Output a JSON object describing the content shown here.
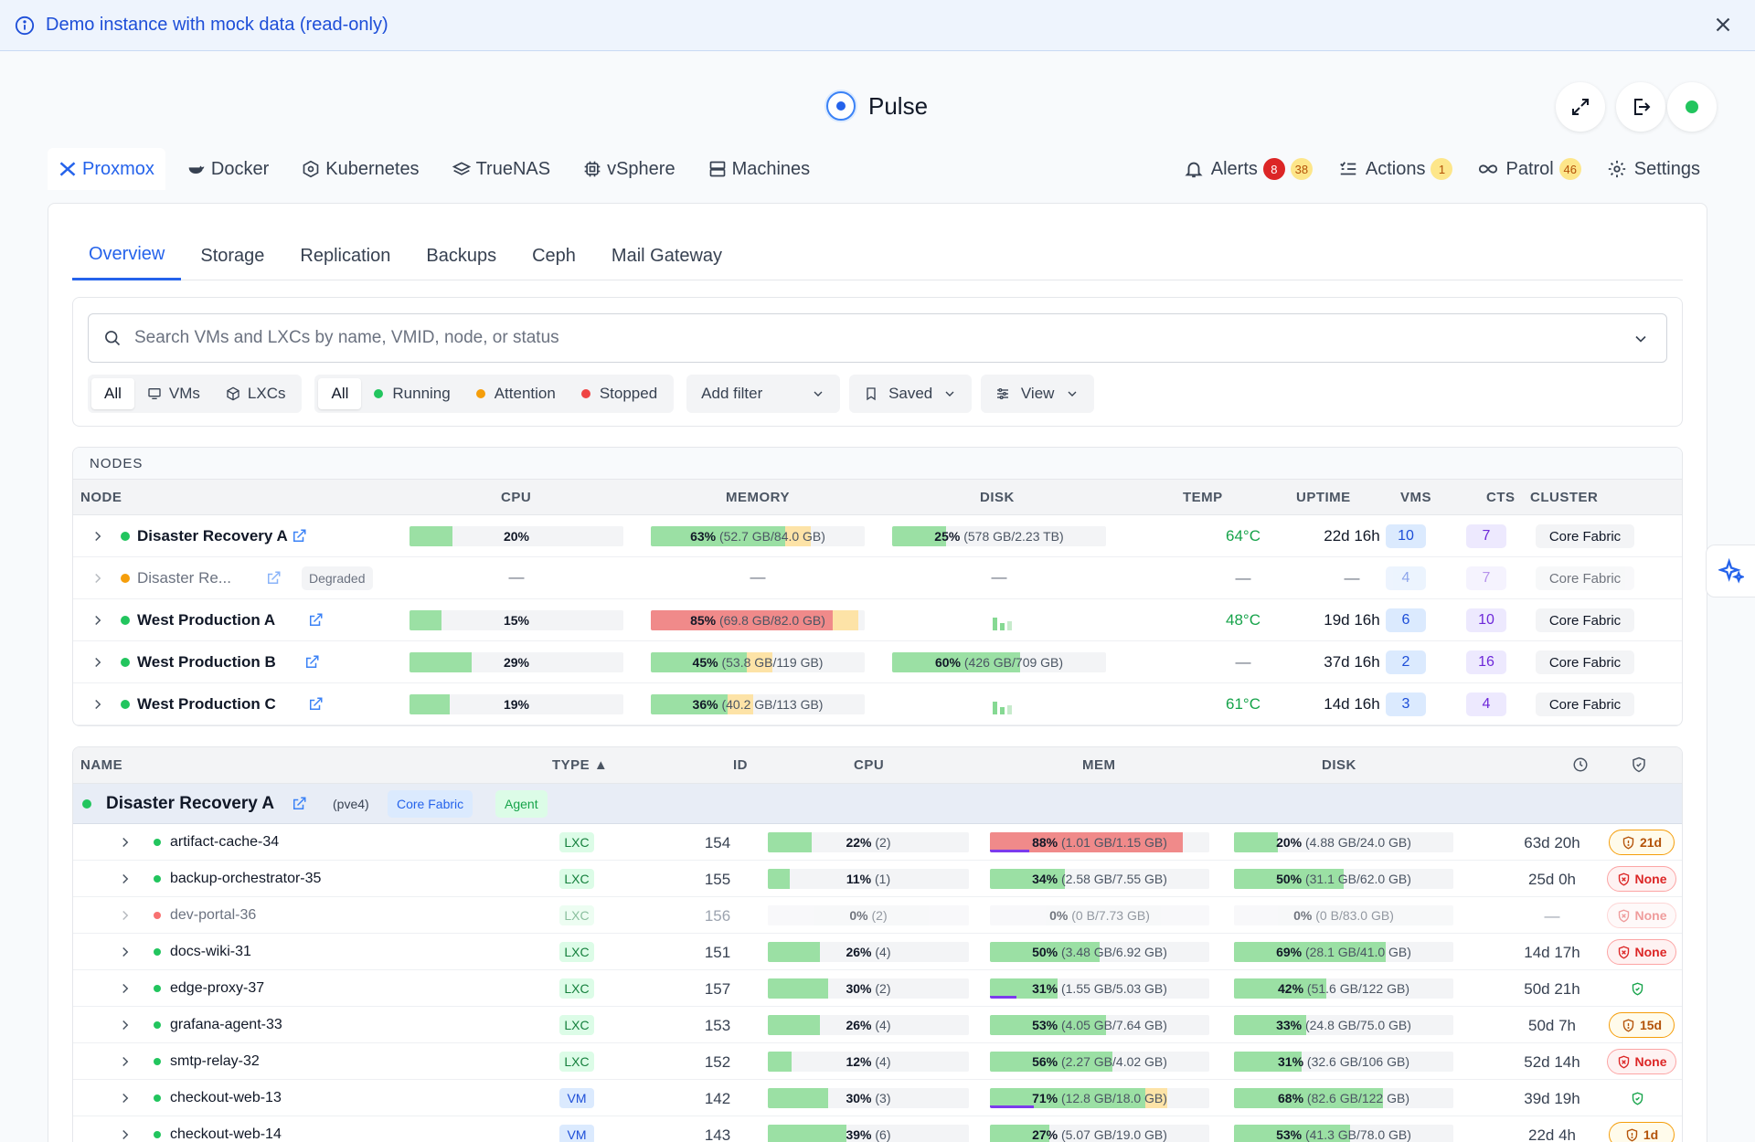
{
  "banner": {
    "text": "Demo instance with mock data (read-only)"
  },
  "app": {
    "title": "Pulse"
  },
  "platform_tabs": [
    "Proxmox",
    "Docker",
    "Kubernetes",
    "TrueNAS",
    "vSphere",
    "Machines"
  ],
  "right_tabs": {
    "alerts": "Alerts",
    "alerts_critical": "8",
    "alerts_warning": "38",
    "actions": "Actions",
    "actions_count": "1",
    "patrol": "Patrol",
    "patrol_count": "46",
    "settings": "Settings"
  },
  "sub_tabs": [
    "Overview",
    "Storage",
    "Replication",
    "Backups",
    "Ceph",
    "Mail Gateway"
  ],
  "search": {
    "placeholder": "Search VMs and LXCs by name, VMID, node, or status"
  },
  "filters": {
    "type": [
      "All",
      "VMs",
      "LXCs"
    ],
    "status": [
      "All",
      "Running",
      "Attention",
      "Stopped"
    ],
    "add_filter": "Add filter",
    "saved": "Saved",
    "view": "View"
  },
  "nodes": {
    "caption": "NODES",
    "headers": [
      "NODE",
      "CPU",
      "MEMORY",
      "DISK",
      "TEMP",
      "UPTIME",
      "VMS",
      "CTS",
      "CLUSTER"
    ],
    "rows": [
      {
        "name": "Disaster Recovery A",
        "status": "online",
        "cpu": "20%",
        "cpu_pct": 20,
        "mem": "63%",
        "mem_detail": "(52.7 GB/84.0 GB)",
        "mem_pct": 63,
        "mem_color": "#9be0a4",
        "disk": "25%",
        "disk_detail": "(578 GB/2.23 TB)",
        "disk_pct": 25,
        "temp": "64°C",
        "uptime": "22d 16h",
        "vms": "10",
        "cts": "7",
        "cluster": "Core Fabric"
      },
      {
        "name": "Disaster Re...",
        "status": "degraded",
        "badge": "Degraded",
        "cpu": "—",
        "mem": "—",
        "disk": "—",
        "temp": "—",
        "uptime": "—",
        "vms": "4",
        "cts": "7",
        "cluster": "Core Fabric"
      },
      {
        "name": "West Production A",
        "status": "online",
        "cpu": "15%",
        "cpu_pct": 15,
        "mem": "85%",
        "mem_detail": "(69.8 GB/82.0 GB)",
        "mem_pct": 85,
        "mem_color": "#f08a8a",
        "disk": "",
        "temp": "48°C",
        "uptime": "19d 16h",
        "vms": "6",
        "cts": "10",
        "cluster": "Core Fabric"
      },
      {
        "name": "West Production B",
        "status": "online",
        "cpu": "29%",
        "cpu_pct": 29,
        "mem": "45%",
        "mem_detail": "(53.8 GB/119 GB)",
        "mem_pct": 45,
        "mem_color": "#9be0a4",
        "disk": "60%",
        "disk_detail": "(426 GB/709 GB)",
        "disk_pct": 60,
        "temp": "—",
        "uptime": "37d 16h",
        "vms": "2",
        "cts": "16",
        "cluster": "Core Fabric"
      },
      {
        "name": "West Production C",
        "status": "online",
        "cpu": "19%",
        "cpu_pct": 19,
        "mem": "36%",
        "mem_detail": "(40.2 GB/113 GB)",
        "mem_pct": 36,
        "mem_color": "#9be0a4",
        "disk": "",
        "temp": "61°C",
        "uptime": "14d 16h",
        "vms": "3",
        "cts": "4",
        "cluster": "Core Fabric"
      }
    ]
  },
  "guests": {
    "headers": [
      "NAME",
      "TYPE ▲",
      "ID",
      "CPU",
      "MEM",
      "DISK"
    ],
    "group": {
      "name": "Disaster Recovery A",
      "node_id": "(pve4)",
      "cluster": "Core Fabric",
      "agent": "Agent"
    },
    "rows": [
      {
        "name": "artifact-cache-34",
        "status": "running",
        "type": "LXC",
        "id": "154",
        "cpu": "22%",
        "cpu_cores": "(2)",
        "cpu_pct": 22,
        "mem": "88%",
        "mem_detail": "(1.01 GB/1.15 GB)",
        "mem_pct": 88,
        "disk": "20%",
        "disk_detail": "(4.88 GB/24.0 GB)",
        "disk_pct": 20,
        "uptime": "63d 20h",
        "backup": "21d",
        "backup_kind": "warn"
      },
      {
        "name": "backup-orchestrator-35",
        "status": "running",
        "type": "LXC",
        "id": "155",
        "cpu": "11%",
        "cpu_cores": "(1)",
        "cpu_pct": 11,
        "mem": "34%",
        "mem_detail": "(2.58 GB/7.55 GB)",
        "mem_pct": 34,
        "disk": "50%",
        "disk_detail": "(31.1 GB/62.0 GB)",
        "disk_pct": 50,
        "uptime": "25d 0h",
        "backup": "None",
        "backup_kind": "none"
      },
      {
        "name": "dev-portal-36",
        "status": "stopped",
        "type": "LXC",
        "id": "156",
        "cpu": "0%",
        "cpu_cores": "(2)",
        "cpu_pct": 0,
        "mem": "0%",
        "mem_detail": "(0 B/7.73 GB)",
        "mem_pct": 0,
        "disk": "0%",
        "disk_detail": "(0 B/83.0 GB)",
        "disk_pct": 0,
        "uptime": "—",
        "backup": "None",
        "backup_kind": "none"
      },
      {
        "name": "docs-wiki-31",
        "status": "running",
        "type": "LXC",
        "id": "151",
        "cpu": "26%",
        "cpu_cores": "(4)",
        "cpu_pct": 26,
        "mem": "50%",
        "mem_detail": "(3.48 GB/6.92 GB)",
        "mem_pct": 50,
        "disk": "69%",
        "disk_detail": "(28.1 GB/41.0 GB)",
        "disk_pct": 69,
        "uptime": "14d 17h",
        "backup": "None",
        "backup_kind": "none"
      },
      {
        "name": "edge-proxy-37",
        "status": "running",
        "type": "LXC",
        "id": "157",
        "cpu": "30%",
        "cpu_cores": "(2)",
        "cpu_pct": 30,
        "mem": "31%",
        "mem_detail": "(1.55 GB/5.03 GB)",
        "mem_pct": 31,
        "disk": "42%",
        "disk_detail": "(51.6 GB/122 GB)",
        "disk_pct": 42,
        "uptime": "50d 21h",
        "backup": "",
        "backup_kind": "ok"
      },
      {
        "name": "grafana-agent-33",
        "status": "running",
        "type": "LXC",
        "id": "153",
        "cpu": "26%",
        "cpu_cores": "(4)",
        "cpu_pct": 26,
        "mem": "53%",
        "mem_detail": "(4.05 GB/7.64 GB)",
        "mem_pct": 53,
        "disk": "33%",
        "disk_detail": "(24.8 GB/75.0 GB)",
        "disk_pct": 33,
        "uptime": "50d 7h",
        "backup": "15d",
        "backup_kind": "warn"
      },
      {
        "name": "smtp-relay-32",
        "status": "running",
        "type": "LXC",
        "id": "152",
        "cpu": "12%",
        "cpu_cores": "(4)",
        "cpu_pct": 12,
        "mem": "56%",
        "mem_detail": "(2.27 GB/4.02 GB)",
        "mem_pct": 56,
        "disk": "31%",
        "disk_detail": "(32.6 GB/106 GB)",
        "disk_pct": 31,
        "uptime": "52d 14h",
        "backup": "None",
        "backup_kind": "none"
      },
      {
        "name": "checkout-web-13",
        "status": "running",
        "type": "VM",
        "id": "142",
        "cpu": "30%",
        "cpu_cores": "(3)",
        "cpu_pct": 30,
        "mem": "71%",
        "mem_detail": "(12.8 GB/18.0 GB)",
        "mem_pct": 71,
        "disk": "68%",
        "disk_detail": "(82.6 GB/122 GB)",
        "disk_pct": 68,
        "uptime": "39d 19h",
        "backup": "",
        "backup_kind": "ok"
      },
      {
        "name": "checkout-web-14",
        "status": "running",
        "type": "VM",
        "id": "143",
        "cpu": "39%",
        "cpu_cores": "(6)",
        "cpu_pct": 39,
        "mem": "27%",
        "mem_detail": "(5.07 GB/19.0 GB)",
        "mem_pct": 27,
        "disk": "53%",
        "disk_detail": "(41.3 GB/78.0 GB)",
        "disk_pct": 53,
        "uptime": "22d 4h",
        "backup": "1d",
        "backup_kind": "warn"
      }
    ]
  }
}
